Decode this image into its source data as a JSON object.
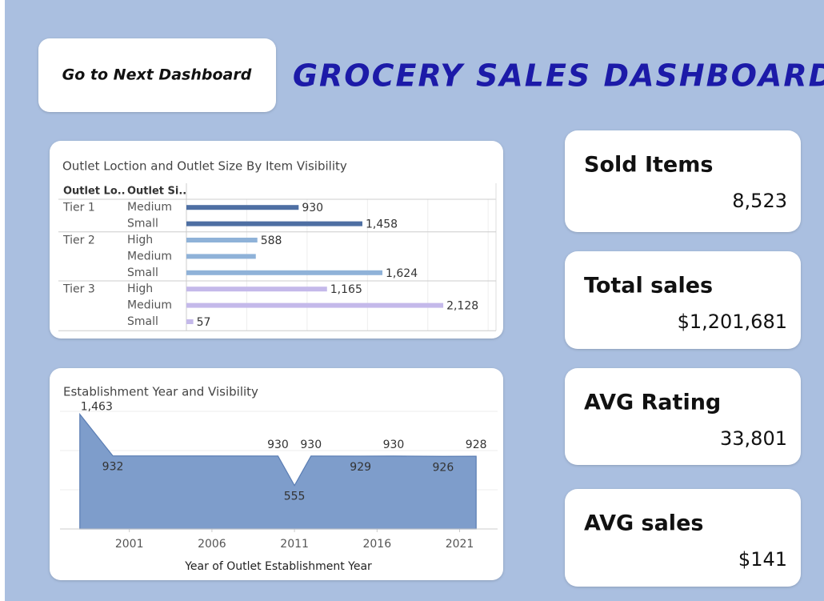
{
  "button": {
    "label": "Go to Next Dashboard"
  },
  "title": "GROCERY SALES DASHBOARD",
  "kpis": [
    {
      "label": "Sold Items",
      "value": "8,523"
    },
    {
      "label": "Total sales",
      "value": "$1,201,681"
    },
    {
      "label": "AVG Rating",
      "value": "33,801"
    },
    {
      "label": "AVG sales",
      "value": "$141"
    }
  ],
  "chart_data": [
    {
      "type": "grouped-hbar",
      "title": "Outlet Loction and Outlet Size By Item Visibility",
      "column_headers": [
        "Outlet Lo..",
        "Outlet Si.."
      ],
      "groups": [
        {
          "name": "Tier 1",
          "color": "#4e6fa3",
          "categories": [
            "Medium",
            "Small"
          ],
          "values": [
            930,
            1458
          ],
          "value_labels": [
            "930",
            "1,458"
          ]
        },
        {
          "name": "Tier 2",
          "color": "#8fb2d8",
          "categories": [
            "High",
            "Medium",
            "Small"
          ],
          "values": [
            588,
            575,
            1624
          ],
          "value_labels": [
            "588",
            null,
            "1,624"
          ]
        },
        {
          "name": "Tier 3",
          "color": "#c4b9ea",
          "categories": [
            "High",
            "Medium",
            "Small"
          ],
          "values": [
            1165,
            2128,
            57
          ],
          "value_labels": [
            "1,165",
            "2,128",
            "57"
          ]
        }
      ],
      "xlim": [
        0,
        2565
      ],
      "xticks": [
        500,
        1000,
        1500,
        2000,
        2500
      ],
      "grid": true
    },
    {
      "type": "area",
      "title": "Establishment Year and Visibility",
      "x_label": "Year of Outlet Establishment Year",
      "x": [
        1998,
        2000,
        2010,
        2011,
        2012,
        2015,
        2017,
        2020,
        2022
      ],
      "values": [
        1463,
        932,
        930,
        555,
        930,
        929,
        930,
        926,
        928
      ],
      "value_labels": [
        "1,463",
        "932",
        "930",
        "555",
        "930",
        "929",
        "930",
        "926",
        "928"
      ],
      "color": "#7e9dcb",
      "xlim": [
        1996.8,
        2023.3
      ],
      "xticks": [
        2001,
        2006,
        2011,
        2016,
        2021
      ],
      "ylim": [
        0,
        1500
      ],
      "yticks": [
        0,
        500,
        1000,
        1500
      ],
      "grid": true
    }
  ]
}
